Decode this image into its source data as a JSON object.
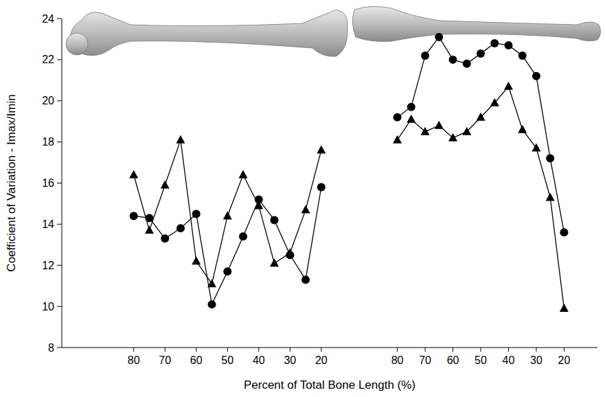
{
  "chart_data": [
    {
      "type": "line",
      "y_label": "Coefficient of Variation - Imax/Imin",
      "x_label": "Percent of Total Bone Length (%)",
      "x": [
        80,
        75,
        70,
        65,
        60,
        55,
        50,
        45,
        40,
        35,
        30,
        25,
        20
      ],
      "xlim": [
        103,
        7
      ],
      "xticks": [
        80,
        70,
        60,
        50,
        40,
        30,
        20
      ],
      "ylim": [
        8,
        24
      ],
      "yticks": [
        8,
        10,
        12,
        14,
        16,
        18,
        20,
        22,
        24
      ],
      "series": [
        {
          "color": "#000000",
          "marker": "circle",
          "values": [
            14.4,
            14.3,
            13.3,
            13.8,
            14.5,
            10.1,
            11.7,
            13.4,
            15.2,
            14.2,
            12.5,
            11.3,
            15.8
          ]
        },
        {
          "color": "#000000",
          "marker": "triangle",
          "values": [
            16.4,
            13.7,
            15.9,
            18.1,
            12.2,
            11.1,
            14.4,
            16.4,
            14.9,
            12.1,
            12.6,
            14.7,
            17.6
          ]
        }
      ]
    },
    {
      "type": "line",
      "x": [
        80,
        75,
        70,
        65,
        60,
        55,
        50,
        45,
        40,
        35,
        30,
        25,
        20
      ],
      "xlim": [
        92,
        8
      ],
      "xticks": [
        80,
        70,
        60,
        50,
        40,
        30,
        20
      ],
      "ylim": [
        8,
        24
      ],
      "series": [
        {
          "color": "#000000",
          "marker": "circle",
          "values": [
            19.2,
            19.7,
            22.2,
            23.1,
            22.0,
            21.8,
            22.3,
            22.8,
            22.7,
            22.2,
            21.2,
            17.2,
            13.6
          ]
        },
        {
          "color": "#000000",
          "marker": "triangle",
          "values": [
            18.1,
            19.1,
            18.5,
            18.8,
            18.2,
            18.5,
            19.2,
            19.9,
            20.7,
            18.6,
            17.7,
            15.3,
            9.9
          ]
        }
      ]
    }
  ]
}
